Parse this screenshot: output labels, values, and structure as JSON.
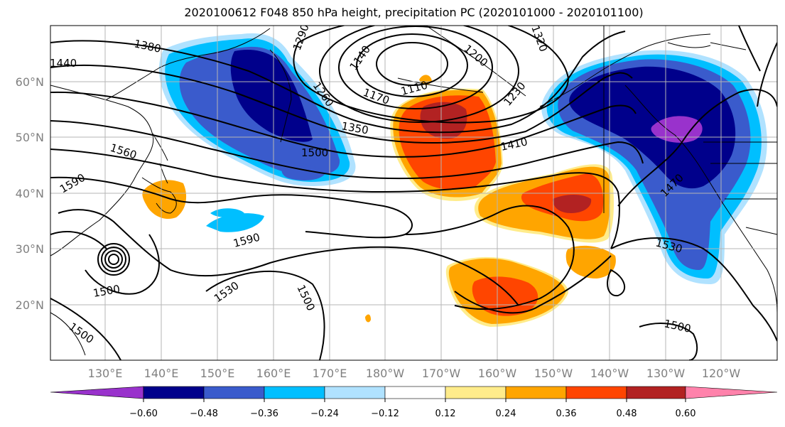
{
  "title": "2020100612 F048 850 hPa height, precipitation PC (2020101000 - 2020101100)",
  "colors": {
    "c_lt_neg060": "#9932CC",
    "c_neg060_neg048": "#00008B",
    "c_neg048_neg036": "#3A5BCC",
    "c_neg036_neg024": "#00BFFF",
    "c_neg024_neg012": "#B0E2FF",
    "c_neg012_012": "#FFFFFF",
    "c_012_024": "#FFEC8B",
    "c_024_036": "#FFA500",
    "c_036_048": "#FF4500",
    "c_048_060": "#B22222",
    "c_gt_060": "#FF82AB"
  },
  "map": {
    "lat_labels": [
      "60°N",
      "50°N",
      "40°N",
      "30°N",
      "20°N"
    ],
    "lon_labels": [
      "130°E",
      "140°E",
      "150°E",
      "160°E",
      "170°E",
      "180°W",
      "170°W",
      "160°W",
      "150°W",
      "140°W",
      "130°W",
      "120°W"
    ],
    "contour_labels": [
      "1380",
      "1440",
      "1290",
      "1140",
      "1200",
      "1320",
      "1260",
      "1170",
      "1110",
      "1230",
      "1350",
      "1500",
      "1410",
      "1560",
      "1590",
      "1470",
      "1590",
      "1530",
      "1500",
      "1530",
      "1500",
      "1500",
      "1500"
    ]
  },
  "colorbar": {
    "ticks": [
      "−0.60",
      "−0.48",
      "−0.36",
      "−0.24",
      "−0.12",
      "0.12",
      "0.24",
      "0.36",
      "0.48",
      "0.60"
    ]
  }
}
